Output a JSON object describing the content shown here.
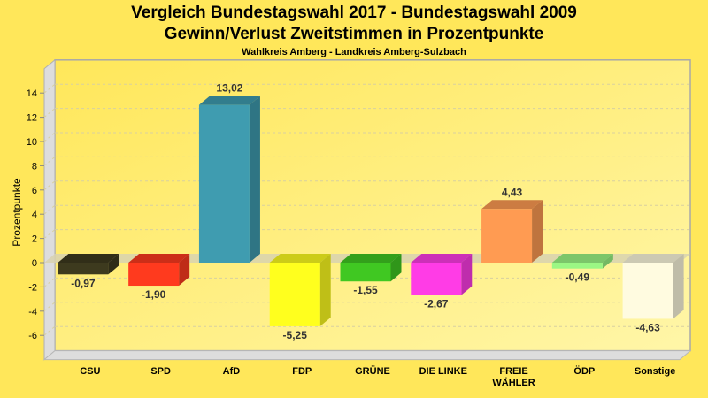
{
  "chart_data": {
    "type": "bar",
    "title": "Vergleich Bundestagswahl 2017 - Bundestagswahl 2009",
    "subtitle": "Gewinn/Verlust Zweitstimmen in Prozentpunkte",
    "subsubtitle": "Wahlkreis Amberg - Landkreis Amberg-Sulzbach",
    "xlabel": "",
    "ylabel": "Prozentpunkte",
    "ylim": [
      -8,
      16
    ],
    "yticks": [
      14,
      12,
      10,
      8,
      6,
      4,
      2,
      0,
      -2,
      -4,
      -6
    ],
    "grid": true,
    "categories": [
      "CSU",
      "SPD",
      "AfD",
      "FDP",
      "GRÜNE",
      "DIE LINKE",
      "FREIE WÄHLER",
      "ÖDP",
      "Sonstige"
    ],
    "category_lines": [
      [
        "CSU"
      ],
      [
        "SPD"
      ],
      [
        "AfD"
      ],
      [
        "FDP"
      ],
      [
        "GRÜNE"
      ],
      [
        "DIE LINKE"
      ],
      [
        "FREIE",
        "WÄHLER"
      ],
      [
        "ÖDP"
      ],
      [
        "Sonstige"
      ]
    ],
    "values": [
      -0.97,
      -1.9,
      13.02,
      -5.25,
      -1.55,
      -2.67,
      4.43,
      -0.49,
      -4.63
    ],
    "value_labels": [
      "-0,97",
      "-1,90",
      "13,02",
      "-5,25",
      "-1,55",
      "-2,67",
      "4,43",
      "-0,49",
      "-4,63"
    ],
    "colors": [
      "#3D3A1E",
      "#FF3A1E",
      "#3F9CB0",
      "#FFFF1E",
      "#40C822",
      "#FF3CE6",
      "#FF9B52",
      "#9BF784",
      "#FFFBE0"
    ]
  }
}
